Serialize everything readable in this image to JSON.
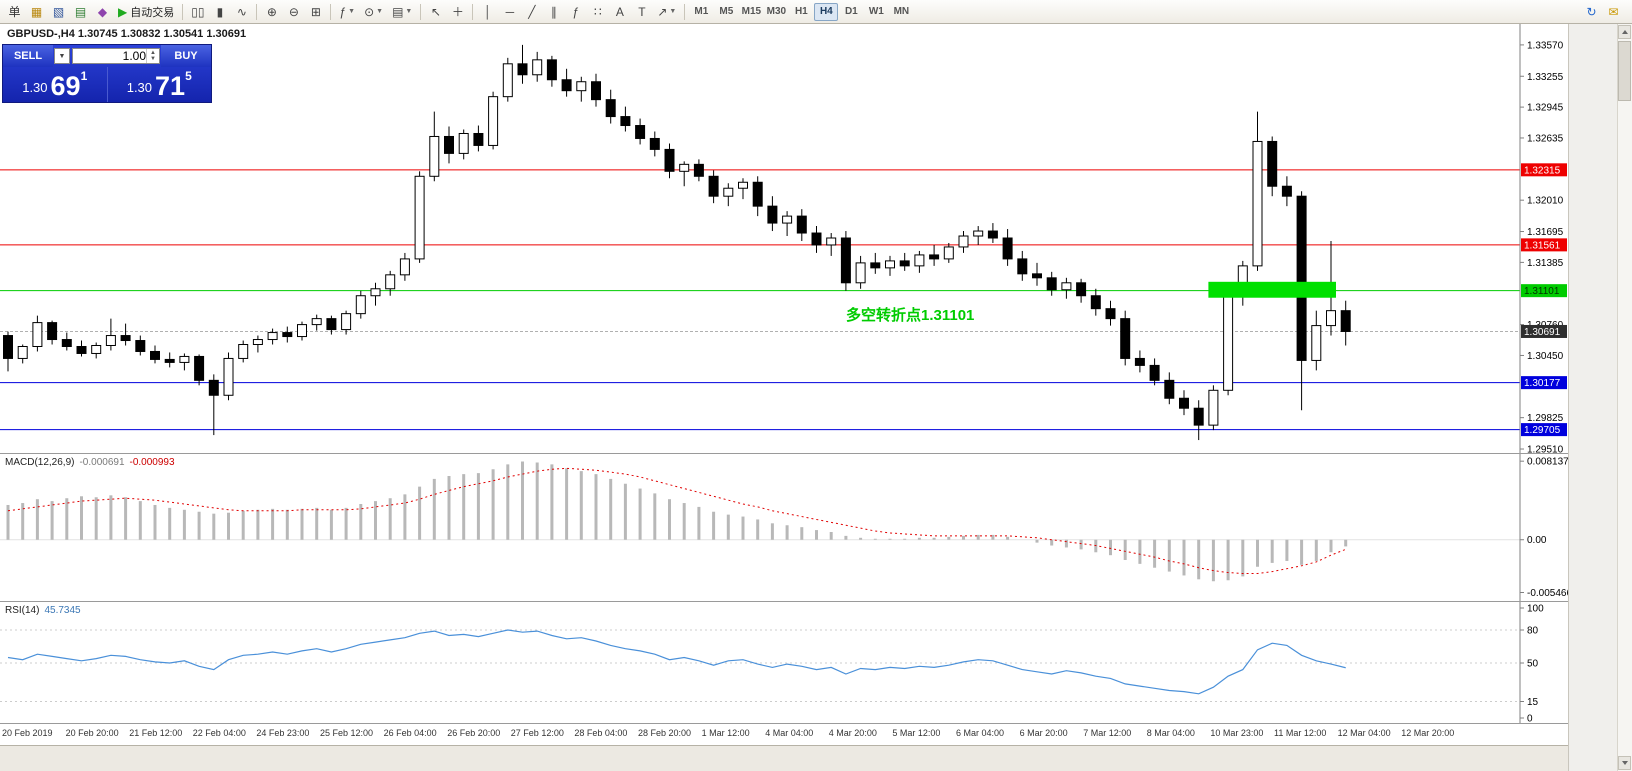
{
  "toolbar": {
    "buttons": [
      {
        "name": "new-order",
        "glyph": "单",
        "color": "#333333"
      },
      {
        "name": "charts-window",
        "glyph": "▦",
        "color": "#b8860b"
      },
      {
        "name": "navigator-window",
        "glyph": "▧",
        "color": "#33569b"
      },
      {
        "name": "market-watch",
        "glyph": "▤",
        "color": "#2e7d32"
      },
      {
        "name": "strategy-tester",
        "glyph": "◆",
        "color": "#8e44ad"
      },
      {
        "name": "auto-trading",
        "glyph": "▶",
        "glyph_color": "#1faa1f",
        "label": "自动交易"
      },
      {
        "sep": true
      },
      {
        "name": "bar-chart-mode",
        "glyph": "▯▯"
      },
      {
        "name": "candlestick-mode",
        "glyph": "▮"
      },
      {
        "name": "line-chart-mode",
        "glyph": "∿"
      },
      {
        "sep": true
      },
      {
        "name": "zoom-in",
        "glyph": "⊕"
      },
      {
        "name": "zoom-out",
        "glyph": "⊖"
      },
      {
        "name": "tile-windows",
        "glyph": "⊞"
      },
      {
        "sep": true
      },
      {
        "name": "indicators-list",
        "glyph": "ƒ",
        "caret": true
      },
      {
        "name": "periods-list",
        "glyph": "⊙",
        "caret": true
      },
      {
        "name": "templates",
        "glyph": "▤",
        "caret": true
      },
      {
        "sep": true
      },
      {
        "name": "cursor-tool",
        "glyph": "↖"
      },
      {
        "name": "crosshair-tool",
        "glyph": "＋"
      },
      {
        "sep": true
      },
      {
        "name": "vertical-line-tool",
        "glyph": "│"
      },
      {
        "name": "horizontal-line-tool",
        "glyph": "─"
      },
      {
        "name": "trendline-tool",
        "glyph": "╱"
      },
      {
        "name": "channel-tool",
        "glyph": "∥"
      },
      {
        "name": "fibonacci-tool",
        "glyph": "ƒ"
      },
      {
        "name": "shapes-tool",
        "glyph": "∷"
      },
      {
        "name": "text-tool",
        "glyph": "A"
      },
      {
        "name": "label-tool",
        "glyph": "T"
      },
      {
        "name": "arrows-tool",
        "glyph": "↗",
        "caret": true
      },
      {
        "sep": true
      }
    ],
    "timeframes": [
      "M1",
      "M5",
      "M15",
      "M30",
      "H1",
      "H4",
      "D1",
      "W1",
      "MN"
    ],
    "active_timeframe": "H4",
    "right_buttons": [
      {
        "name": "refresh",
        "glyph": "↻",
        "color": "#2266cc"
      },
      {
        "name": "community-chat",
        "glyph": "✉",
        "color": "#c99700"
      }
    ]
  },
  "trade_panel": {
    "sell_label": "SELL",
    "buy_label": "BUY",
    "lot_size": "1.00",
    "sell_price_main": "1.30",
    "sell_price_big": "69",
    "sell_price_sup": "1",
    "buy_price_main": "1.30",
    "buy_price_big": "71",
    "buy_price_sup": "5"
  },
  "chart": {
    "symbol_label": "GBPUSD-,H4 1.30745 1.30832 1.30541 1.30691",
    "annotation": "多空转折点1.31101",
    "annotation_color": "#00cc00"
  },
  "indicators": {
    "macd_label": "MACD(12,26,9)",
    "macd_value": "-0.000691",
    "macd_signal_value": "-0.000993",
    "rsi_label": "RSI(14)",
    "rsi_value": "45.7345"
  },
  "time_axis": [
    "20 Feb 2019",
    "20 Feb 20:00",
    "21 Feb 12:00",
    "22 Feb 04:00",
    "24 Feb 23:00",
    "25 Feb 12:00",
    "26 Feb 04:00",
    "26 Feb 20:00",
    "27 Feb 12:00",
    "28 Feb 04:00",
    "28 Feb 20:00",
    "1 Mar 12:00",
    "4 Mar 04:00",
    "4 Mar 20:00",
    "5 Mar 12:00",
    "6 Mar 04:00",
    "6 Mar 20:00",
    "7 Mar 12:00",
    "8 Mar 04:00",
    "10 Mar 23:00",
    "11 Mar 12:00",
    "12 Mar 04:00",
    "12 Mar 20:00"
  ],
  "chart_data": [
    {
      "type": "candlestick",
      "title": "GBPUSD- H4",
      "price_range": [
        1.2947,
        1.3378
      ],
      "y_ticks": [
        1.3357,
        1.33255,
        1.32945,
        1.32635,
        1.3201,
        1.31695,
        1.31385,
        1.3076,
        1.3045,
        1.29825,
        1.2951
      ],
      "current_price": 1.30691,
      "current_price_label_bg": "#2e2e2e",
      "hlines": [
        {
          "price": 1.32315,
          "color": "#ee0000",
          "label_fg": "#ffffff"
        },
        {
          "price": 1.31561,
          "color": "#ee0000",
          "label_fg": "#ffffff"
        },
        {
          "price": 1.31101,
          "color": "#00cc00",
          "label_fg": "#003300"
        },
        {
          "price": 1.30177,
          "color": "#0000dd",
          "label_fg": "#ffffff"
        },
        {
          "price": 1.29705,
          "color": "#0000dd",
          "label_fg": "#ffffff"
        }
      ],
      "green_zone": {
        "price_top": 1.3119,
        "price_bottom": 1.3103,
        "start_index": 82,
        "end_index": 90,
        "color": "#00e000"
      },
      "candles": [
        [
          1.3065,
          1.3069,
          1.3029,
          1.3042
        ],
        [
          1.3042,
          1.3056,
          1.3037,
          1.3054
        ],
        [
          1.3054,
          1.3085,
          1.3049,
          1.3078
        ],
        [
          1.3078,
          1.308,
          1.3056,
          1.3061
        ],
        [
          1.3061,
          1.3068,
          1.305,
          1.3054
        ],
        [
          1.3054,
          1.306,
          1.3044,
          1.3047
        ],
        [
          1.3047,
          1.3058,
          1.3042,
          1.3055
        ],
        [
          1.3055,
          1.3082,
          1.305,
          1.3065
        ],
        [
          1.3065,
          1.3077,
          1.3055,
          1.306
        ],
        [
          1.306,
          1.3065,
          1.3045,
          1.3049
        ],
        [
          1.3049,
          1.3055,
          1.3037,
          1.3041
        ],
        [
          1.3041,
          1.3048,
          1.3033,
          1.3038
        ],
        [
          1.3038,
          1.3047,
          1.303,
          1.3044
        ],
        [
          1.3044,
          1.3046,
          1.3015,
          1.302
        ],
        [
          1.302,
          1.3026,
          1.2965,
          1.3005
        ],
        [
          1.3005,
          1.3048,
          1.3,
          1.3042
        ],
        [
          1.3042,
          1.306,
          1.3038,
          1.3056
        ],
        [
          1.3056,
          1.3065,
          1.3048,
          1.3061
        ],
        [
          1.3061,
          1.3072,
          1.3056,
          1.3068
        ],
        [
          1.3068,
          1.3074,
          1.3058,
          1.3064
        ],
        [
          1.3064,
          1.3079,
          1.306,
          1.3076
        ],
        [
          1.3076,
          1.3086,
          1.307,
          1.3082
        ],
        [
          1.3082,
          1.3085,
          1.3066,
          1.3071
        ],
        [
          1.3071,
          1.309,
          1.3066,
          1.3087
        ],
        [
          1.3087,
          1.311,
          1.3082,
          1.3105
        ],
        [
          1.3105,
          1.3118,
          1.3095,
          1.3112
        ],
        [
          1.3112,
          1.313,
          1.3105,
          1.3126
        ],
        [
          1.3126,
          1.3148,
          1.312,
          1.3142
        ],
        [
          1.3142,
          1.323,
          1.3138,
          1.3225
        ],
        [
          1.3225,
          1.329,
          1.322,
          1.3265
        ],
        [
          1.3265,
          1.3275,
          1.3238,
          1.3248
        ],
        [
          1.3248,
          1.3272,
          1.3242,
          1.3268
        ],
        [
          1.3268,
          1.3276,
          1.325,
          1.3256
        ],
        [
          1.3256,
          1.331,
          1.3252,
          1.3305
        ],
        [
          1.3305,
          1.3344,
          1.33,
          1.3338
        ],
        [
          1.3338,
          1.3357,
          1.3318,
          1.3327
        ],
        [
          1.3327,
          1.335,
          1.332,
          1.3342
        ],
        [
          1.3342,
          1.3346,
          1.3315,
          1.3322
        ],
        [
          1.3322,
          1.3333,
          1.3305,
          1.3311
        ],
        [
          1.3311,
          1.3325,
          1.33,
          1.332
        ],
        [
          1.332,
          1.3328,
          1.3295,
          1.3302
        ],
        [
          1.3302,
          1.3312,
          1.3278,
          1.3285
        ],
        [
          1.3285,
          1.3295,
          1.327,
          1.3276
        ],
        [
          1.3276,
          1.3283,
          1.3257,
          1.3263
        ],
        [
          1.3263,
          1.327,
          1.3245,
          1.3252
        ],
        [
          1.3252,
          1.3258,
          1.3223,
          1.323
        ],
        [
          1.323,
          1.324,
          1.3215,
          1.3237
        ],
        [
          1.3237,
          1.3242,
          1.322,
          1.3225
        ],
        [
          1.3225,
          1.3231,
          1.3198,
          1.3205
        ],
        [
          1.3205,
          1.3218,
          1.3195,
          1.3213
        ],
        [
          1.3213,
          1.3223,
          1.3202,
          1.3219
        ],
        [
          1.3219,
          1.3225,
          1.3185,
          1.3195
        ],
        [
          1.3195,
          1.3205,
          1.317,
          1.3178
        ],
        [
          1.3178,
          1.319,
          1.3165,
          1.3185
        ],
        [
          1.3185,
          1.3192,
          1.316,
          1.3168
        ],
        [
          1.3168,
          1.3175,
          1.3148,
          1.3156
        ],
        [
          1.3156,
          1.3168,
          1.3145,
          1.3163
        ],
        [
          1.3163,
          1.317,
          1.311,
          1.3118
        ],
        [
          1.3118,
          1.3145,
          1.3112,
          1.3138
        ],
        [
          1.3138,
          1.3148,
          1.3127,
          1.3133
        ],
        [
          1.3133,
          1.3145,
          1.3125,
          1.314
        ],
        [
          1.314,
          1.3148,
          1.313,
          1.3135
        ],
        [
          1.3135,
          1.315,
          1.3128,
          1.3146
        ],
        [
          1.3146,
          1.3156,
          1.3135,
          1.3142
        ],
        [
          1.3142,
          1.3158,
          1.3138,
          1.3154
        ],
        [
          1.3154,
          1.317,
          1.3148,
          1.3165
        ],
        [
          1.3165,
          1.3175,
          1.3156,
          1.317
        ],
        [
          1.317,
          1.3178,
          1.3158,
          1.3163
        ],
        [
          1.3163,
          1.3172,
          1.3135,
          1.3142
        ],
        [
          1.3142,
          1.315,
          1.312,
          1.3127
        ],
        [
          1.3127,
          1.3138,
          1.3115,
          1.3123
        ],
        [
          1.3123,
          1.3129,
          1.3105,
          1.3111
        ],
        [
          1.3111,
          1.3123,
          1.3102,
          1.3118
        ],
        [
          1.3118,
          1.3122,
          1.3098,
          1.3105
        ],
        [
          1.3105,
          1.3112,
          1.3085,
          1.3092
        ],
        [
          1.3092,
          1.31,
          1.3075,
          1.3082
        ],
        [
          1.3082,
          1.309,
          1.3035,
          1.3042
        ],
        [
          1.3042,
          1.305,
          1.3028,
          1.3035
        ],
        [
          1.3035,
          1.3042,
          1.3015,
          1.302
        ],
        [
          1.302,
          1.3028,
          1.2996,
          1.3002
        ],
        [
          1.3002,
          1.301,
          1.2985,
          1.2992
        ],
        [
          1.2992,
          1.3,
          1.296,
          1.2975
        ],
        [
          1.2975,
          1.3015,
          1.297,
          1.301
        ],
        [
          1.301,
          1.3115,
          1.3005,
          1.311
        ],
        [
          1.311,
          1.314,
          1.3095,
          1.3135
        ],
        [
          1.3135,
          1.329,
          1.313,
          1.326
        ],
        [
          1.326,
          1.3265,
          1.3205,
          1.3215
        ],
        [
          1.3215,
          1.3225,
          1.3195,
          1.3205
        ],
        [
          1.3205,
          1.321,
          1.299,
          1.304
        ],
        [
          1.304,
          1.309,
          1.303,
          1.3075
        ],
        [
          1.3075,
          1.316,
          1.3065,
          1.309
        ],
        [
          1.309,
          1.31,
          1.3055,
          1.30691
        ]
      ]
    },
    {
      "type": "macd",
      "label": "MACD(12,26,9)",
      "range": [
        -0.00645,
        0.00888
      ],
      "y_ticks": [
        {
          "v": 0.008137,
          "label": "0.008137"
        },
        {
          "v": 0,
          "label": "0.00"
        },
        {
          "v": -0.005466,
          "label": "-0.005466"
        }
      ],
      "histogram": [
        0.0036,
        0.0038,
        0.0042,
        0.004,
        0.0043,
        0.0045,
        0.0044,
        0.0046,
        0.0044,
        0.004,
        0.0036,
        0.0033,
        0.0031,
        0.0029,
        0.0027,
        0.0028,
        0.003,
        0.0031,
        0.0032,
        0.0031,
        0.0032,
        0.0033,
        0.0031,
        0.0033,
        0.0037,
        0.004,
        0.0043,
        0.0047,
        0.0055,
        0.0063,
        0.0066,
        0.0068,
        0.0069,
        0.0073,
        0.0078,
        0.0081,
        0.008,
        0.0078,
        0.0074,
        0.0071,
        0.0068,
        0.0063,
        0.0058,
        0.0053,
        0.0048,
        0.0042,
        0.0038,
        0.0034,
        0.0029,
        0.0026,
        0.0024,
        0.0021,
        0.0017,
        0.0015,
        0.0013,
        0.001,
        0.0008,
        0.0004,
        0.0002,
        0.0001,
        0.0001,
        0.0001,
        0.0002,
        0.0002,
        0.0003,
        0.0004,
        0.0005,
        0.0005,
        0.0003,
        0.0,
        -0.0003,
        -0.0006,
        -0.0008,
        -0.001,
        -0.0013,
        -0.0016,
        -0.0021,
        -0.0025,
        -0.0029,
        -0.0033,
        -0.0037,
        -0.0041,
        -0.0043,
        -0.0042,
        -0.0038,
        -0.0028,
        -0.0024,
        -0.0022,
        -0.0026,
        -0.0022,
        -0.0013,
        -0.000691
      ],
      "signal": [
        0.003,
        0.0032,
        0.0034,
        0.0036,
        0.0038,
        0.004,
        0.0041,
        0.0042,
        0.0043,
        0.0042,
        0.0041,
        0.0039,
        0.0037,
        0.0035,
        0.0033,
        0.0031,
        0.003,
        0.003,
        0.003,
        0.003,
        0.0031,
        0.0031,
        0.0031,
        0.0031,
        0.0032,
        0.0034,
        0.0036,
        0.0038,
        0.0042,
        0.0047,
        0.0051,
        0.0055,
        0.0058,
        0.0061,
        0.0065,
        0.0068,
        0.0071,
        0.0073,
        0.0074,
        0.0073,
        0.0072,
        0.007,
        0.0068,
        0.0065,
        0.0061,
        0.0057,
        0.0053,
        0.0049,
        0.0045,
        0.0041,
        0.0037,
        0.0034,
        0.003,
        0.0027,
        0.0024,
        0.0021,
        0.0018,
        0.0015,
        0.0012,
        0.0009,
        0.0007,
        0.0006,
        0.0005,
        0.0004,
        0.0004,
        0.0004,
        0.0004,
        0.0004,
        0.0004,
        0.0003,
        0.0002,
        0.0,
        -0.0002,
        -0.0004,
        -0.0006,
        -0.0009,
        -0.0012,
        -0.0015,
        -0.0018,
        -0.0022,
        -0.0025,
        -0.0029,
        -0.0032,
        -0.0034,
        -0.0035,
        -0.0035,
        -0.0033,
        -0.003,
        -0.0027,
        -0.0023,
        -0.0016,
        -0.000993
      ]
    },
    {
      "type": "rsi",
      "label": "RSI(14)",
      "range": [
        0,
        100
      ],
      "levels": [
        80,
        50,
        15
      ],
      "y_ticks": [
        {
          "v": 100,
          "label": "100"
        },
        {
          "v": 80,
          "label": "80"
        },
        {
          "v": 50,
          "label": "50"
        },
        {
          "v": 15,
          "label": "15"
        },
        {
          "v": 0,
          "label": "0"
        }
      ],
      "values": [
        55,
        53,
        58,
        56,
        54,
        52,
        54,
        57,
        56,
        53,
        51,
        50,
        52,
        47,
        44,
        53,
        57,
        58,
        60,
        58,
        61,
        63,
        60,
        63,
        67,
        69,
        71,
        73,
        77,
        79,
        75,
        76,
        74,
        77,
        80,
        78,
        79,
        75,
        72,
        73,
        70,
        66,
        63,
        61,
        58,
        53,
        55,
        52,
        48,
        52,
        53,
        49,
        46,
        49,
        47,
        44,
        46,
        40,
        45,
        44,
        46,
        45,
        47,
        46,
        48,
        51,
        53,
        52,
        48,
        44,
        42,
        40,
        43,
        41,
        38,
        36,
        31,
        29,
        27,
        25,
        24,
        22,
        28,
        38,
        44,
        62,
        68,
        66,
        57,
        52,
        49,
        45.7
      ]
    }
  ]
}
